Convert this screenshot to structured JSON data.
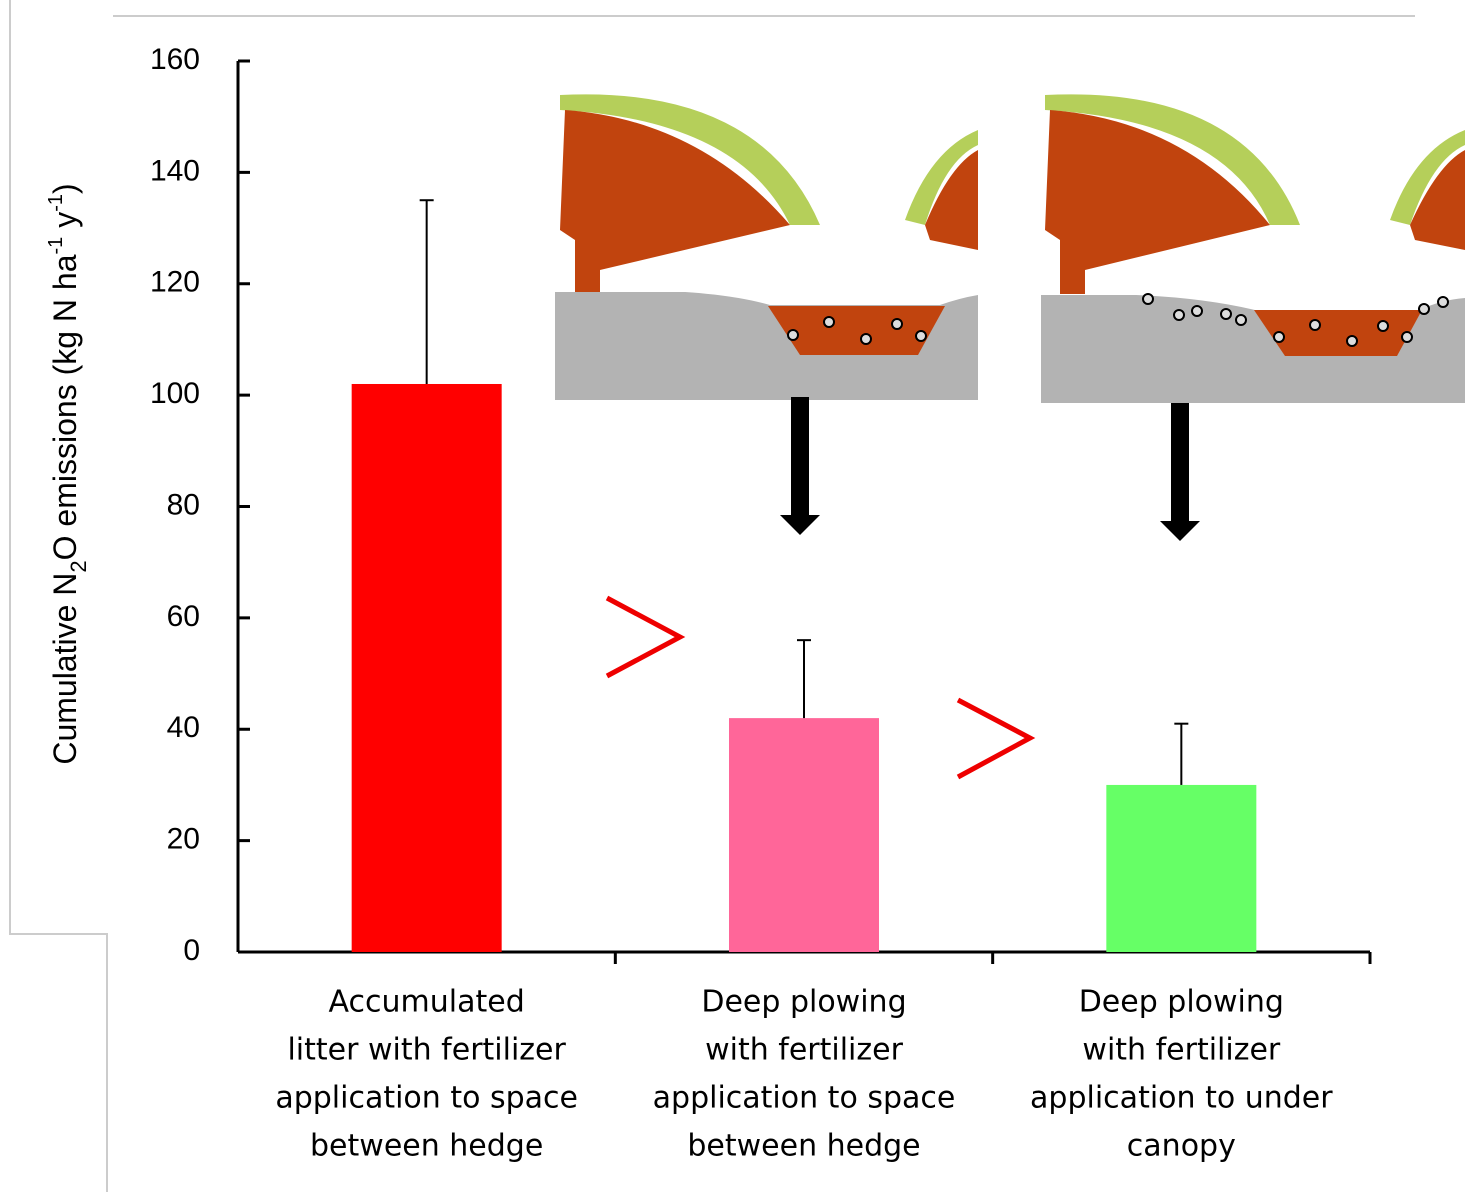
{
  "chart_data": {
    "type": "bar",
    "ylabel": [
      "Cumulative N",
      "2",
      "O emissions (kg N ha",
      "-1",
      " y",
      "-1",
      ")"
    ],
    "categories": [
      [
        "Accumulated",
        "litter with fertilizer",
        "application to space",
        "between hedge"
      ],
      [
        "Deep plowing",
        "with fertilizer",
        "application to space",
        "between hedge"
      ],
      [
        "Deep plowing",
        "with fertilizer",
        "application to under",
        "canopy"
      ]
    ],
    "values": [
      102,
      42,
      30
    ],
    "errors": [
      33,
      14,
      11
    ],
    "colors": [
      "#ff0000",
      "#ff6699",
      "#66ff66"
    ],
    "ylim": [
      0,
      160
    ],
    "yticks": [
      0,
      20,
      40,
      60,
      80,
      100,
      120,
      140,
      160
    ]
  }
}
